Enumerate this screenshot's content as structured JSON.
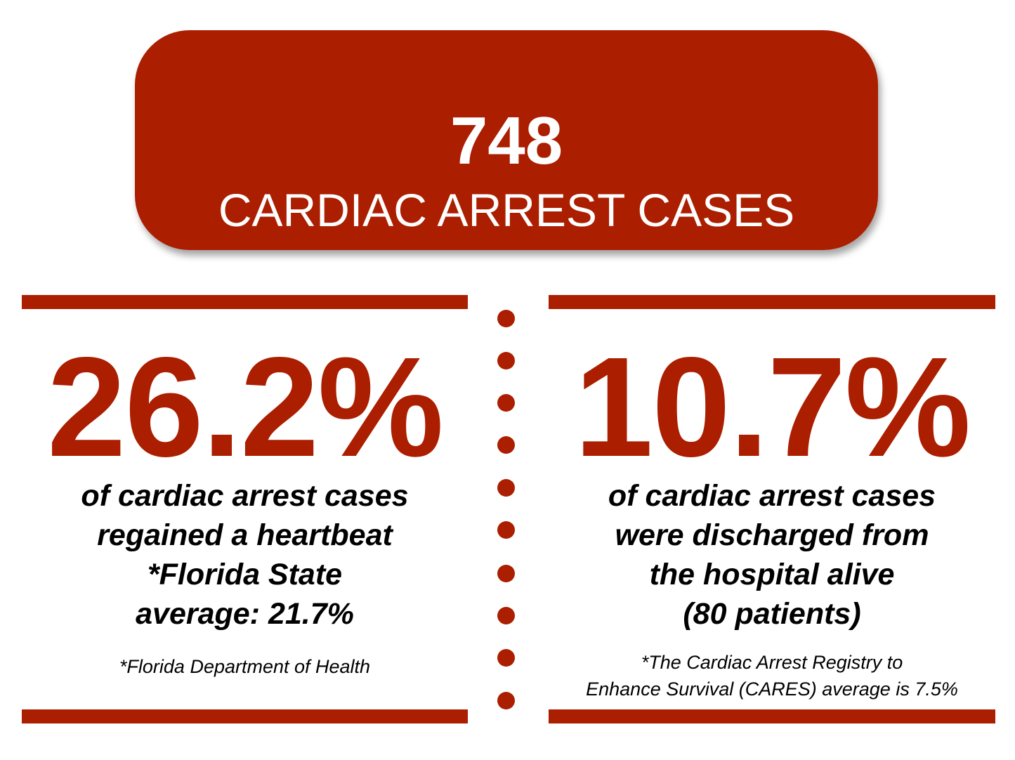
{
  "colors": {
    "accent": "#ab1e00",
    "text": "#000000",
    "background": "#ffffff"
  },
  "banner": {
    "number": "748",
    "label": "CARDIAC ARREST CASES"
  },
  "left_stat": {
    "value": "26.2%",
    "description_lines": [
      "of cardiac arrest cases",
      "regained a heartbeat",
      "*Florida State",
      "average: 21.7%"
    ],
    "note_lines": [
      "*Florida Department of Health"
    ]
  },
  "right_stat": {
    "value": "10.7%",
    "description_lines": [
      "of cardiac arrest cases",
      "were discharged from",
      "the hospital alive",
      "(80 patients)"
    ],
    "note_lines": [
      "*The Cardiac Arrest Registry to",
      "Enhance Survival (CARES) average is 7.5%"
    ]
  }
}
